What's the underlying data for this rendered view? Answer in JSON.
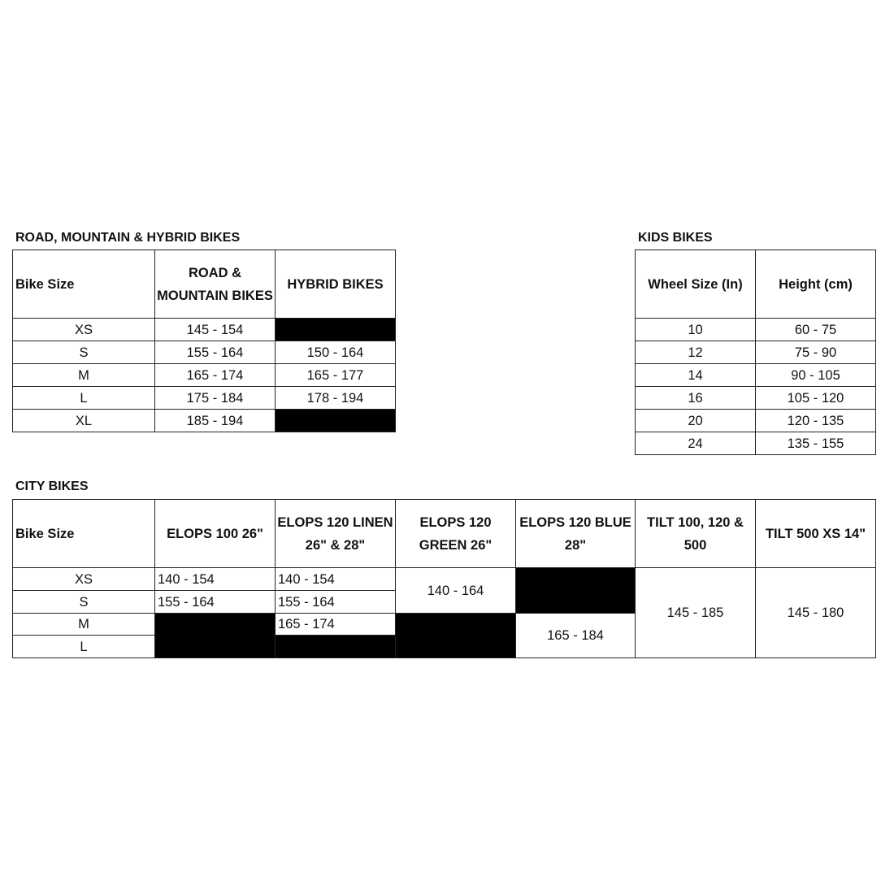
{
  "road": {
    "title": "ROAD, MOUNTAIN & HYBRID BIKES",
    "headers": [
      "Bike Size",
      "ROAD & MOUNTAIN BIKES",
      "HYBRID BIKES"
    ],
    "rows": [
      {
        "size": "XS",
        "road": "145 - 154",
        "hybrid": null
      },
      {
        "size": "S",
        "road": "155 - 164",
        "hybrid": "150 - 164"
      },
      {
        "size": "M",
        "road": "165 - 174",
        "hybrid": "165 - 177"
      },
      {
        "size": "L",
        "road": "175 - 184",
        "hybrid": "178 - 194"
      },
      {
        "size": "XL",
        "road": "185 - 194",
        "hybrid": null
      }
    ]
  },
  "kids": {
    "title": "KIDS BIKES",
    "headers": [
      "Wheel Size (In)",
      "Height (cm)"
    ],
    "rows": [
      {
        "wheel": "10",
        "height": "60 - 75"
      },
      {
        "wheel": "12",
        "height": "75 - 90"
      },
      {
        "wheel": "14",
        "height": "90 - 105"
      },
      {
        "wheel": "16",
        "height": "105 - 120"
      },
      {
        "wheel": "20",
        "height": "120 - 135"
      },
      {
        "wheel": "24",
        "height": "135 - 155"
      }
    ]
  },
  "city": {
    "title": "CITY BIKES",
    "headers": [
      "Bike Size",
      "ELOPS 100 26\"",
      "ELOPS 120 LINEN 26\" & 28\"",
      "ELOPS 120 GREEN 26\"",
      "ELOPS 120 BLUE 28\"",
      "TILT 100, 120 & 500",
      "TILT 500 XS 14\""
    ],
    "sizes": [
      "XS",
      "S",
      "M",
      "L"
    ],
    "elops100": {
      "XS": "140 - 154",
      "S": "155 - 164"
    },
    "linen": {
      "XS": "140 - 154",
      "S": "155 - 164",
      "M": "165 - 174"
    },
    "green": {
      "XS_S": "140 - 164"
    },
    "blue": {
      "M_L": "165 - 184"
    },
    "tilt100": {
      "all": "145 - 185"
    },
    "tilt500": {
      "all": "145 - 180"
    }
  },
  "colors": {
    "unavailable_fill": "#000000",
    "border": "#222222"
  }
}
